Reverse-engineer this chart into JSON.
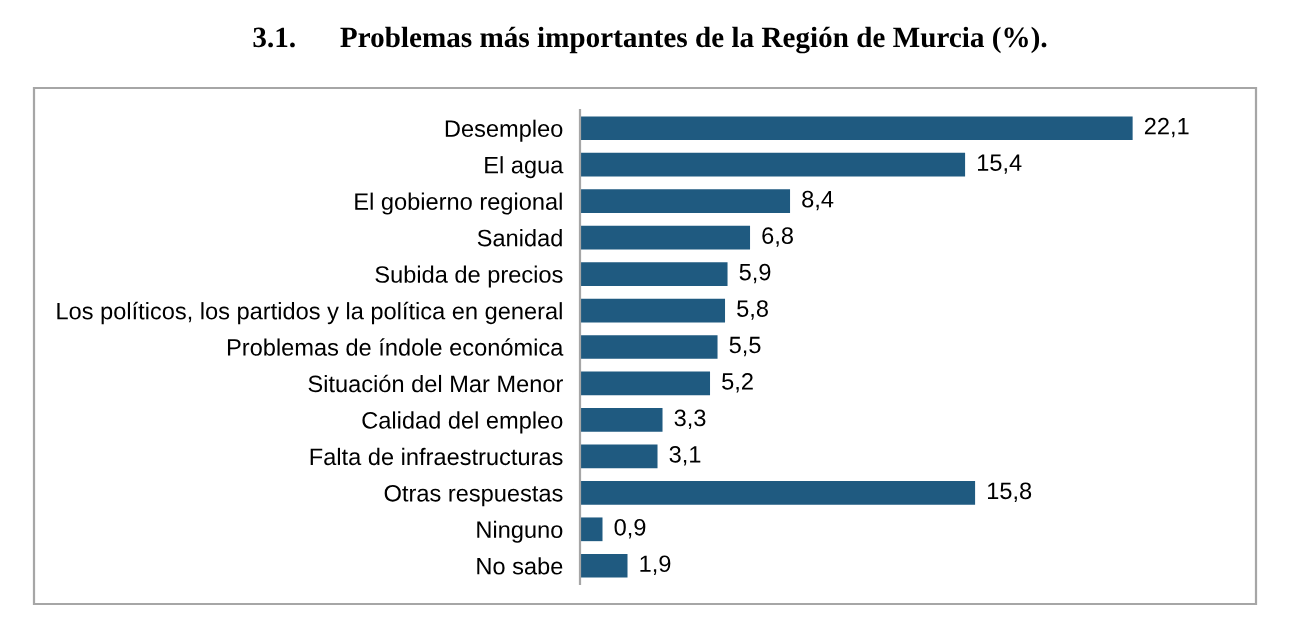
{
  "chart_data": {
    "type": "bar",
    "orientation": "horizontal",
    "title": "3.1.      Problemas más importantes de la Región de Murcia (%).",
    "categories": [
      "Desempleo",
      "El agua",
      "El gobierno regional",
      "Sanidad",
      "Subida de precios",
      "Los políticos, los partidos y la política en general",
      "Problemas de índole económica",
      "Situación del Mar Menor",
      "Calidad del empleo",
      "Falta de infraestructuras",
      "Otras respuestas",
      "Ninguno",
      "No sabe"
    ],
    "values": [
      22.1,
      15.4,
      8.4,
      6.8,
      5.9,
      5.8,
      5.5,
      5.2,
      3.3,
      3.1,
      15.8,
      0.9,
      1.9
    ],
    "value_labels": [
      "22,1",
      "15,4",
      "8,4",
      "6,8",
      "5,9",
      "5,8",
      "5,5",
      "5,2",
      "3,3",
      "3,1",
      "15,8",
      "0,9",
      "1,9"
    ],
    "color": "#1f5a80",
    "grid": false,
    "legend": false
  }
}
